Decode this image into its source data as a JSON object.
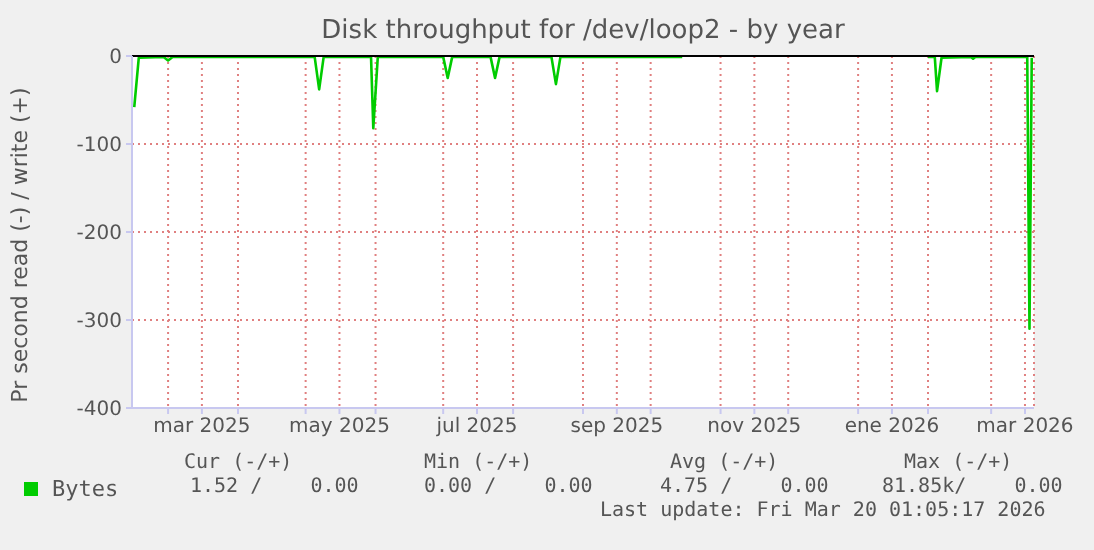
{
  "chart_data": {
    "type": "line",
    "title": "Disk throughput for /dev/loop2 - by year",
    "ylabel": "Pr second read (-) / write (+)",
    "x": [
      "2025-02-14",
      "2025-02-16",
      "2025-02-27",
      "2025-03-01",
      "2025-03-03",
      "2025-05-05",
      "2025-05-07",
      "2025-05-09",
      "2025-05-30",
      "2025-05-31",
      "2025-06-02",
      "2025-07-01",
      "2025-07-03",
      "2025-07-05",
      "2025-07-22",
      "2025-07-24",
      "2025-07-26",
      "2025-08-18",
      "2025-08-20",
      "2025-08-22",
      "2025-10-15",
      "2025-10-16",
      "2026-01-31",
      "2026-02-01",
      "2026-02-04",
      "2026-02-05",
      "2026-02-07",
      "2026-02-20",
      "2026-02-21",
      "2026-02-22",
      "2026-03-17",
      "2026-03-18",
      "2026-03-19"
    ],
    "series": [
      {
        "name": "Bytes",
        "color": "#00cc00",
        "values": [
          -58,
          -2,
          -1,
          -5,
          -1,
          -1,
          -38,
          -1,
          -1,
          -82,
          -1,
          -1,
          -25,
          -1,
          -1,
          -25,
          -1,
          -1,
          -32,
          -1,
          -1,
          null,
          null,
          -1,
          -1,
          -40,
          -2,
          -1,
          -3,
          -1,
          -1,
          -310,
          -2
        ]
      }
    ],
    "xlim": [
      "2025-02-13",
      "2026-03-20"
    ],
    "xticks": [
      {
        "value": "2025-03-01",
        "label": null
      },
      {
        "value": "2025-03-16",
        "label": "mar 2025"
      },
      {
        "value": "2025-04-01",
        "label": null
      },
      {
        "value": "2025-05-01",
        "label": null
      },
      {
        "value": "2025-05-16",
        "label": "may 2025"
      },
      {
        "value": "2025-06-01",
        "label": null
      },
      {
        "value": "2025-07-01",
        "label": null
      },
      {
        "value": "2025-07-16",
        "label": "jul 2025"
      },
      {
        "value": "2025-08-01",
        "label": null
      },
      {
        "value": "2025-09-01",
        "label": null
      },
      {
        "value": "2025-09-16",
        "label": "sep 2025"
      },
      {
        "value": "2025-10-01",
        "label": null
      },
      {
        "value": "2025-11-01",
        "label": null
      },
      {
        "value": "2025-11-16",
        "label": "nov 2025"
      },
      {
        "value": "2025-12-01",
        "label": null
      },
      {
        "value": "2026-01-01",
        "label": null
      },
      {
        "value": "2026-01-16",
        "label": "ene 2026"
      },
      {
        "value": "2026-02-01",
        "label": null
      },
      {
        "value": "2026-03-01",
        "label": null
      },
      {
        "value": "2026-03-16",
        "label": "mar 2026"
      }
    ],
    "ylim": [
      -400,
      0
    ],
    "yticks": [
      -400,
      -300,
      -200,
      -100,
      0
    ],
    "ref_lines": [
      {
        "axis": "y",
        "value": 0,
        "color": "#000000"
      }
    ],
    "grid": true,
    "legend": "bottom",
    "marker": "none",
    "line_style": "solid",
    "annotations": [
      "Cur (-/+)",
      "Min (-/+)",
      "Avg (-/+)",
      "Max (-/+)",
      "1.52 /    0.00",
      "0.00 /    0.00",
      "4.75 /    0.00",
      "81.85k/    0.00",
      "Last update: Fri Mar 20 01:05:17 2026"
    ]
  }
}
